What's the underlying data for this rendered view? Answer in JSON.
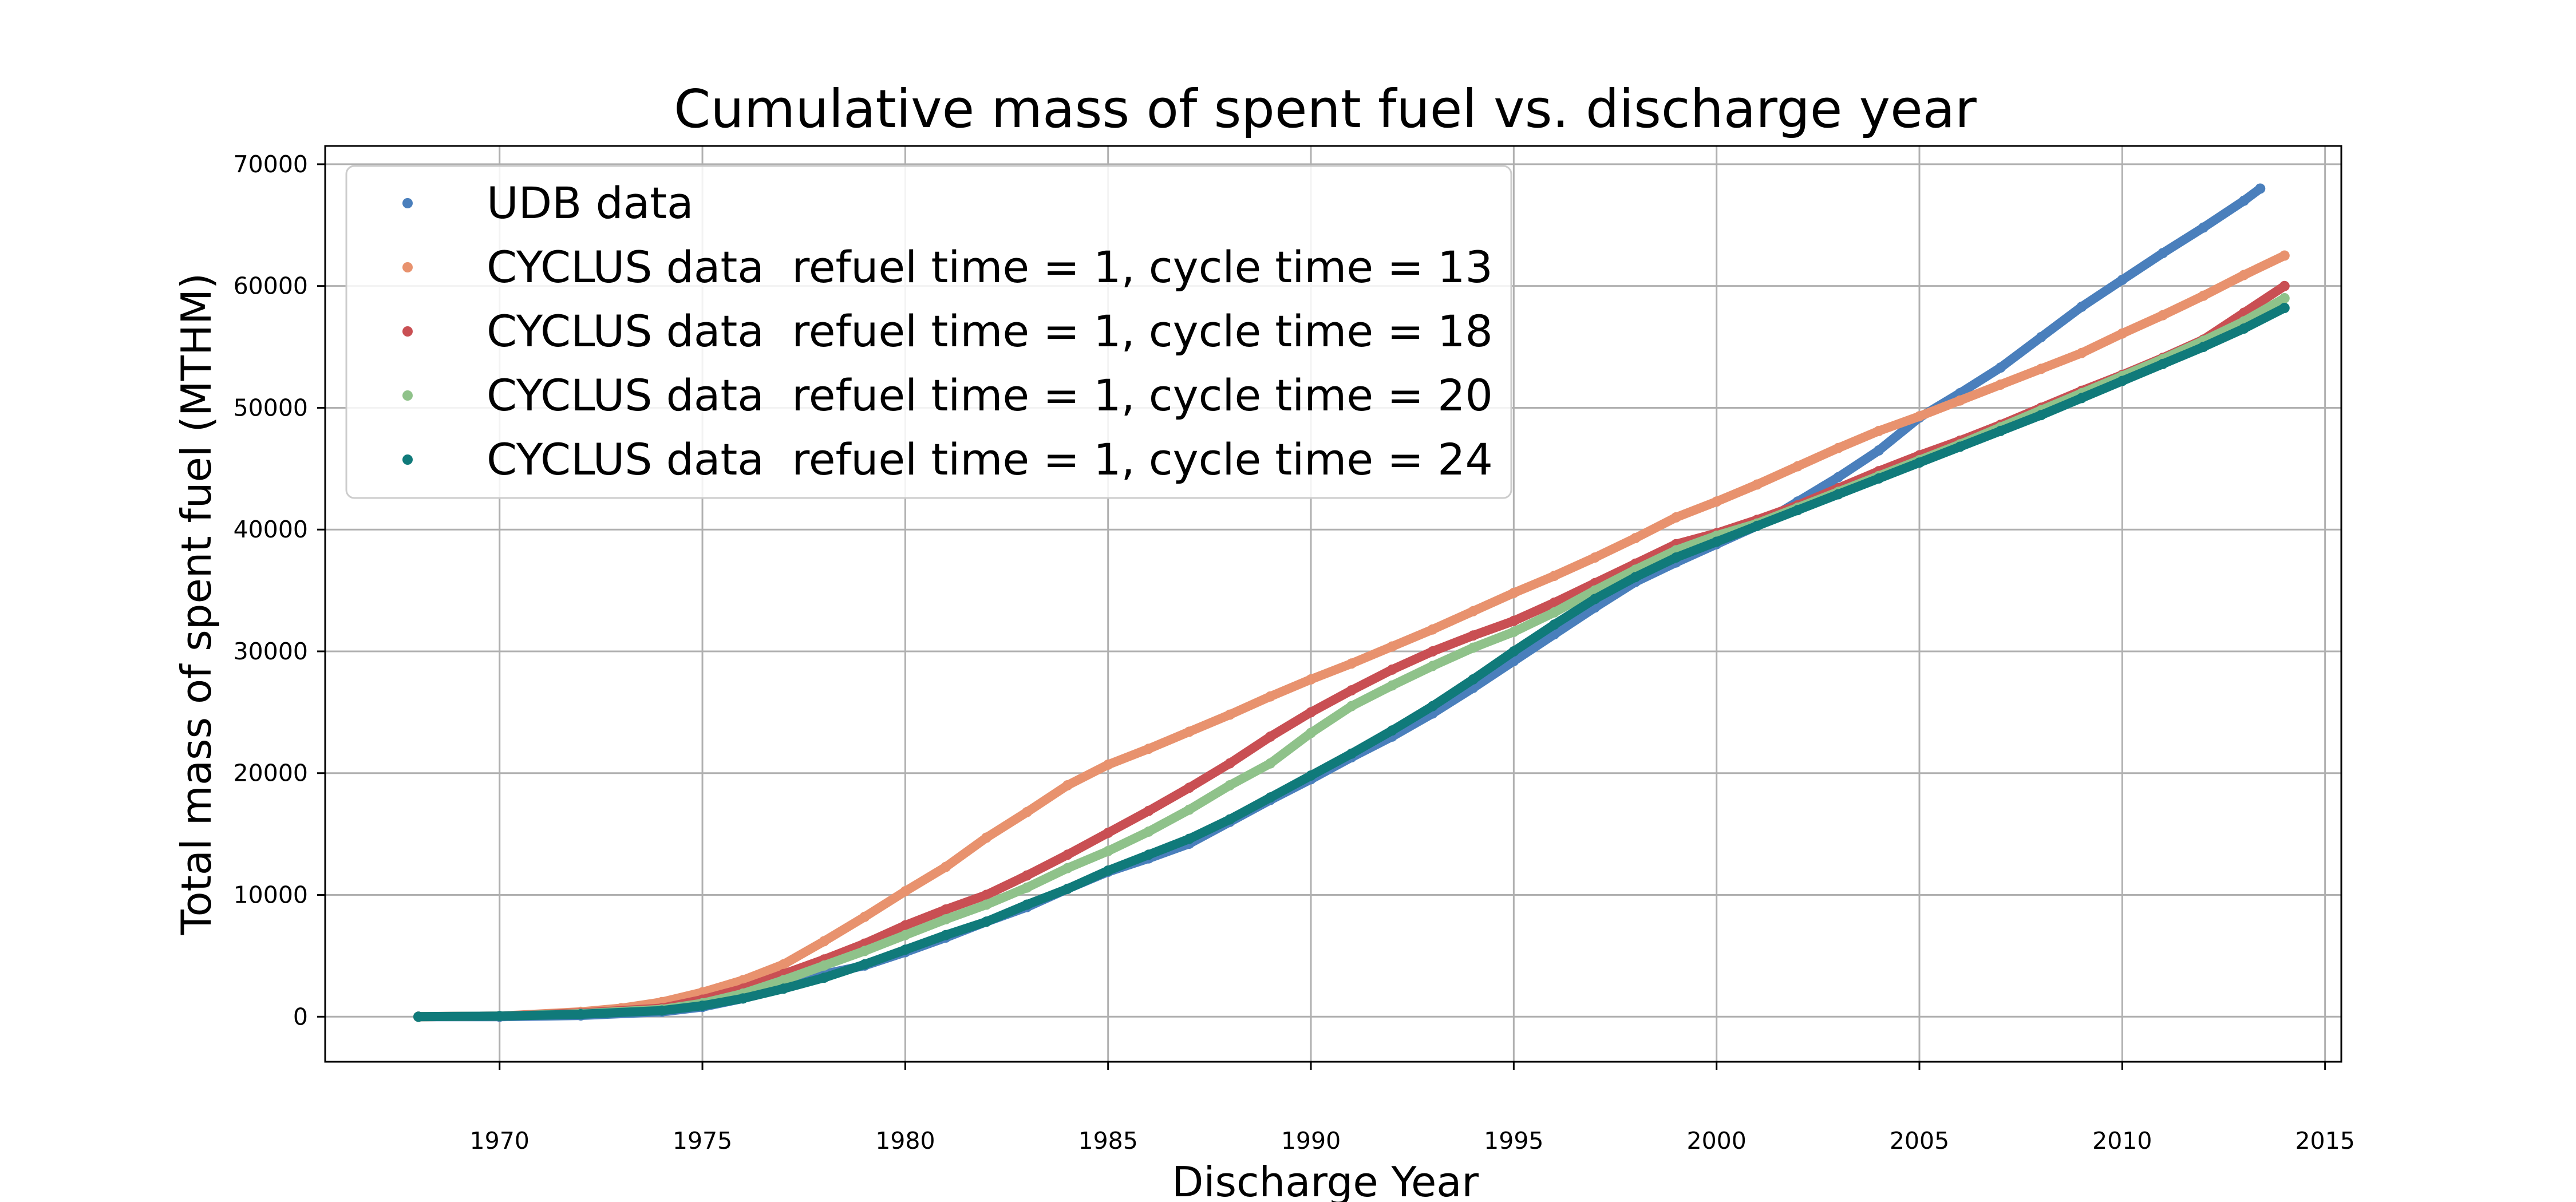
{
  "chart_data": {
    "type": "scatter",
    "title": "Cumulative mass of spent fuel vs. discharge year",
    "xlabel": "Discharge Year",
    "ylabel": "Total mass of spent fuel (MTHM)",
    "xlim": [
      1965.7,
      2015.4
    ],
    "ylim": [
      -3700,
      71500
    ],
    "xticks": [
      1970,
      1975,
      1980,
      1985,
      1990,
      1995,
      2000,
      2005,
      2010,
      2015
    ],
    "yticks": [
      0,
      10000,
      20000,
      30000,
      40000,
      50000,
      60000,
      70000
    ],
    "grid": true,
    "legend_position": "top-left",
    "series": [
      {
        "name": "UDB data",
        "color": "#4a7fbc",
        "x": [
          1968,
          1970,
          1972,
          1974,
          1975,
          1976,
          1977,
          1978,
          1979,
          1980,
          1981,
          1982,
          1983,
          1984,
          1985,
          1986,
          1987,
          1988,
          1989,
          1990,
          1991,
          1992,
          1993,
          1994,
          1995,
          1996,
          1997,
          1998,
          1999,
          2000,
          2001,
          2002,
          2003,
          2004,
          2005,
          2006,
          2007,
          2008,
          2009,
          2010,
          2011,
          2012,
          2013,
          2013.4
        ],
        "y": [
          0,
          0,
          100,
          400,
          800,
          1500,
          2500,
          3500,
          4200,
          5300,
          6500,
          7800,
          9000,
          10500,
          11900,
          13000,
          14200,
          16000,
          17800,
          19500,
          21300,
          23000,
          24900,
          27000,
          29200,
          31400,
          33600,
          35700,
          37300,
          38800,
          40300,
          42300,
          44300,
          46500,
          49200,
          51200,
          53300,
          55800,
          58300,
          60500,
          62700,
          64800,
          67000,
          68000
        ]
      },
      {
        "name": "CYCLUS data  refuel time = 1, cycle time = 13",
        "color": "#e8926e",
        "x": [
          1968,
          1970,
          1972,
          1973,
          1974,
          1975,
          1976,
          1977,
          1978,
          1979,
          1980,
          1981,
          1982,
          1983,
          1984,
          1985,
          1986,
          1987,
          1988,
          1989,
          1990,
          1991,
          1992,
          1993,
          1994,
          1995,
          1996,
          1997,
          1998,
          1999,
          2000,
          2001,
          2002,
          2003,
          2004,
          2005,
          2006,
          2007,
          2008,
          2009,
          2010,
          2011,
          2012,
          2013,
          2014
        ],
        "y": [
          0,
          50,
          400,
          700,
          1200,
          2000,
          3000,
          4300,
          6200,
          8200,
          10300,
          12300,
          14700,
          16800,
          19000,
          20700,
          22000,
          23400,
          24800,
          26300,
          27700,
          29000,
          30400,
          31800,
          33300,
          34800,
          36200,
          37700,
          39300,
          41000,
          42300,
          43700,
          45200,
          46700,
          48100,
          49300,
          50600,
          51900,
          53200,
          54500,
          56100,
          57600,
          59200,
          60900,
          62500
        ]
      },
      {
        "name": "CYCLUS data  refuel time = 1, cycle time = 18",
        "color": "#c94f53",
        "x": [
          1968,
          1970,
          1972,
          1974,
          1975,
          1976,
          1977,
          1978,
          1979,
          1980,
          1981,
          1982,
          1983,
          1984,
          1985,
          1986,
          1987,
          1988,
          1989,
          1990,
          1991,
          1992,
          1993,
          1994,
          1995,
          1996,
          1997,
          1998,
          1999,
          2000,
          2001,
          2002,
          2003,
          2004,
          2005,
          2006,
          2007,
          2008,
          2009,
          2010,
          2011,
          2012,
          2013,
          2014
        ],
        "y": [
          0,
          50,
          300,
          700,
          1400,
          2300,
          3500,
          4700,
          6000,
          7500,
          8800,
          10000,
          11600,
          13300,
          15100,
          16900,
          18800,
          20800,
          23000,
          25000,
          26800,
          28500,
          30000,
          31300,
          32500,
          34000,
          35600,
          37200,
          38800,
          39700,
          40800,
          42000,
          43400,
          44800,
          46100,
          47300,
          48600,
          50000,
          51400,
          52700,
          54100,
          55600,
          57800,
          60000
        ]
      },
      {
        "name": "CYCLUS data  refuel time = 1, cycle time = 20",
        "color": "#8fc28a",
        "x": [
          1968,
          1970,
          1972,
          1974,
          1975,
          1976,
          1977,
          1978,
          1979,
          1980,
          1981,
          1982,
          1983,
          1984,
          1985,
          1986,
          1987,
          1988,
          1989,
          1990,
          1991,
          1992,
          1993,
          1994,
          1995,
          1996,
          1997,
          1998,
          1999,
          2000,
          2001,
          2002,
          2003,
          2004,
          2005,
          2006,
          2007,
          2008,
          2009,
          2010,
          2011,
          2012,
          2013,
          2014
        ],
        "y": [
          0,
          50,
          250,
          600,
          1100,
          1900,
          3000,
          4200,
          5400,
          6700,
          8000,
          9200,
          10600,
          12200,
          13600,
          15200,
          17000,
          19000,
          20800,
          23300,
          25500,
          27200,
          28800,
          30300,
          31600,
          33200,
          35000,
          36700,
          38300,
          39500,
          40500,
          41800,
          43100,
          44400,
          45700,
          47000,
          48400,
          49800,
          51200,
          52600,
          54000,
          55500,
          57100,
          59000
        ]
      },
      {
        "name": "CYCLUS data  refuel time = 1, cycle time = 24",
        "color": "#107a7a",
        "x": [
          1968,
          1970,
          1972,
          1974,
          1975,
          1976,
          1977,
          1978,
          1979,
          1980,
          1981,
          1982,
          1983,
          1984,
          1985,
          1986,
          1987,
          1988,
          1989,
          1990,
          1991,
          1992,
          1993,
          1994,
          1995,
          1996,
          1997,
          1998,
          1999,
          2000,
          2001,
          2002,
          2003,
          2004,
          2005,
          2006,
          2007,
          2008,
          2009,
          2010,
          2011,
          2012,
          2013,
          2014
        ],
        "y": [
          0,
          50,
          200,
          500,
          900,
          1500,
          2300,
          3200,
          4300,
          5500,
          6700,
          7800,
          9200,
          10500,
          12000,
          13300,
          14600,
          16200,
          18000,
          19800,
          21600,
          23500,
          25500,
          27700,
          30000,
          32200,
          34300,
          36100,
          37700,
          39000,
          40300,
          41600,
          42900,
          44200,
          45500,
          46800,
          48100,
          49400,
          50800,
          52200,
          53600,
          55000,
          56500,
          58200
        ]
      }
    ]
  }
}
